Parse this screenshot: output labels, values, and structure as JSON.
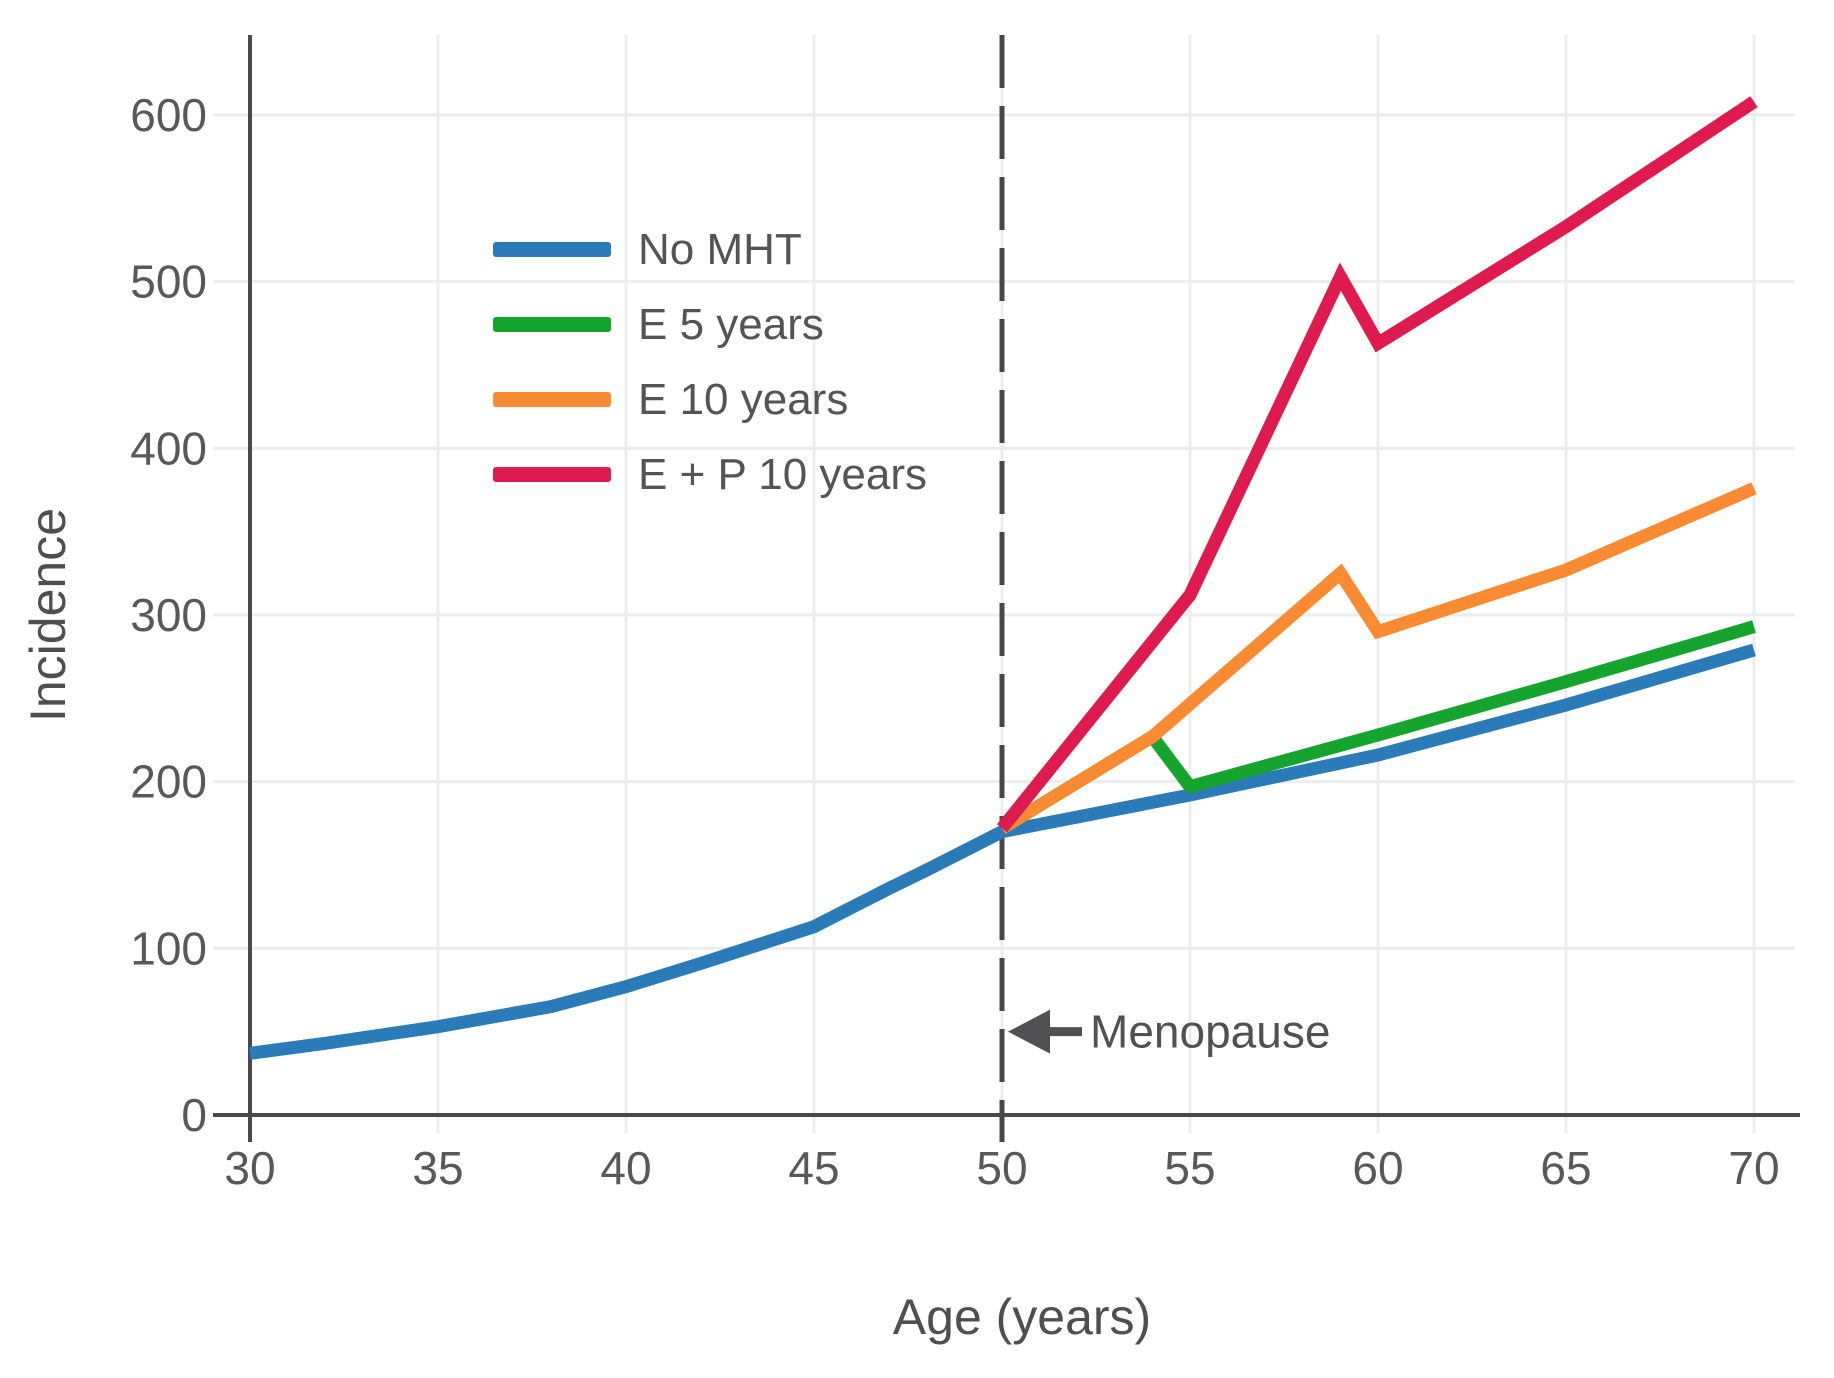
{
  "chart_data": {
    "type": "line",
    "title": "",
    "xlabel": "Age (years)",
    "ylabel": "Incidence",
    "xlim": [
      30,
      70
    ],
    "ylim": [
      0,
      600
    ],
    "xticks": [
      30,
      35,
      40,
      45,
      50,
      55,
      60,
      65,
      70
    ],
    "yticks": [
      0,
      100,
      200,
      300,
      400,
      500,
      600
    ],
    "grid": true,
    "legend_position": "upper-left-inside",
    "annotation": {
      "label": "Menopause",
      "arrow_direction": "left",
      "at_x": 50,
      "at_y": 50
    },
    "reference_line": {
      "x": 50,
      "style": "dashed"
    },
    "series": [
      {
        "name": "No MHT",
        "color": "#2b7bb9",
        "points": [
          [
            30,
            37
          ],
          [
            32,
            43
          ],
          [
            35,
            53
          ],
          [
            38,
            65
          ],
          [
            40,
            77
          ],
          [
            42,
            91
          ],
          [
            45,
            113
          ],
          [
            47,
            136
          ],
          [
            48,
            147
          ],
          [
            50,
            170
          ],
          [
            55,
            192
          ],
          [
            60,
            216
          ],
          [
            65,
            246
          ],
          [
            70,
            279
          ]
        ]
      },
      {
        "name": "E 5 years",
        "color": "#15a42e",
        "points": [
          [
            50,
            172
          ],
          [
            54,
            227
          ],
          [
            55,
            197
          ],
          [
            60,
            228
          ],
          [
            65,
            260
          ],
          [
            70,
            293
          ]
        ]
      },
      {
        "name": "E 10 years",
        "color": "#fa8b32",
        "points": [
          [
            50,
            172
          ],
          [
            54,
            227
          ],
          [
            59,
            325
          ],
          [
            60,
            290
          ],
          [
            65,
            327
          ],
          [
            70,
            376
          ]
        ]
      },
      {
        "name": "E + P 10 years",
        "color": "#df1a4e",
        "points": [
          [
            50,
            172
          ],
          [
            55,
            312
          ],
          [
            59,
            503
          ],
          [
            60,
            463
          ],
          [
            65,
            533
          ],
          [
            70,
            608
          ]
        ]
      }
    ]
  },
  "colors": {
    "grid": "#ececec",
    "axis": "#4a4a4c",
    "reference_line": "#47474a",
    "tick_text": "#58585a",
    "annotation_text": "#515153"
  }
}
